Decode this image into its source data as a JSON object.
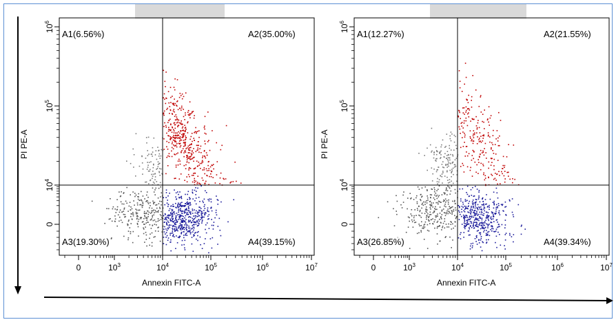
{
  "chart_data": [
    {
      "type": "scatter",
      "xlabel": "Annexin FITC-A",
      "ylabel": "PI PE-A",
      "x_scale": "biexponential",
      "y_scale": "biexponential",
      "x_ticks": [
        "0",
        "10^3",
        "10^4",
        "10^5",
        "10^6",
        "10^7"
      ],
      "y_ticks": [
        "0",
        "10^4",
        "10^5",
        "10^6"
      ],
      "gate": {
        "x": 10000,
        "y": 8500
      },
      "quadrants": {
        "A1": "A1(6.56%)",
        "A2": "A2(35.00%)",
        "A3": "A3(19.30%)",
        "A4": "A4(39.15%)"
      },
      "colors": {
        "A1": "#7a7a7a",
        "A2": "#c00000",
        "A3": "#555555",
        "A4": "#1a1a9a"
      }
    },
    {
      "type": "scatter",
      "xlabel": "Annexin FITC-A",
      "ylabel": "PI PE-A",
      "x_scale": "biexponential",
      "y_scale": "biexponential",
      "x_ticks": [
        "0",
        "10^3",
        "10^4",
        "10^5",
        "10^6",
        "10^7"
      ],
      "y_ticks": [
        "0",
        "10^4",
        "10^5",
        "10^6"
      ],
      "gate": {
        "x": 10000,
        "y": 8500
      },
      "quadrants": {
        "A1": "A1(12.27%)",
        "A2": "A2(21.55%)",
        "A3": "A3(26.85%)",
        "A4": "A4(39.34%)"
      },
      "colors": {
        "A1": "#7a7a7a",
        "A2": "#c00000",
        "A3": "#555555",
        "A4": "#1a1a9a"
      }
    }
  ]
}
